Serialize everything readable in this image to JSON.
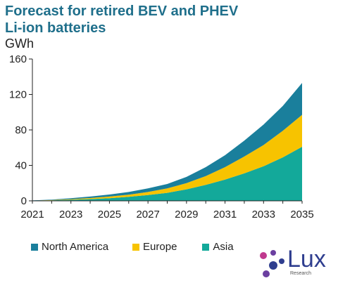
{
  "header": {
    "title_line1": "Forecast for retired BEV and PHEV",
    "title_line2": "Li-ion batteries",
    "unit": "GWh"
  },
  "logo": {
    "name": "Lux",
    "sub": "Research"
  },
  "colors": {
    "north_america": "#1a7f9c",
    "europe": "#f7c300",
    "asia": "#13a99a",
    "axis": "#222222",
    "title": "#1f6f8b",
    "logo": "#2f3e8f"
  },
  "chart_data": {
    "type": "area",
    "stacked": true,
    "title": "Forecast for retired BEV and PHEV Li-ion batteries",
    "ylabel": "GWh",
    "xlabel": "",
    "x": [
      2021,
      2022,
      2023,
      2024,
      2025,
      2026,
      2027,
      2028,
      2029,
      2030,
      2031,
      2032,
      2033,
      2034,
      2035
    ],
    "x_ticks": [
      2021,
      2023,
      2025,
      2027,
      2029,
      2031,
      2033,
      2035
    ],
    "y_ticks": [
      0,
      40,
      80,
      120,
      160
    ],
    "ylim": [
      0,
      160
    ],
    "xlim": [
      2021,
      2035
    ],
    "grid": false,
    "legend_position": "bottom",
    "series": [
      {
        "name": "Asia",
        "values": [
          0.2,
          0.6,
          1.2,
          2.0,
          3.0,
          4.5,
          6.5,
          9.0,
          13.0,
          18.0,
          24.0,
          31.0,
          39.0,
          49.0,
          61.0
        ]
      },
      {
        "name": "Europe",
        "values": [
          0.1,
          0.3,
          0.7,
          1.2,
          1.8,
          2.5,
          3.5,
          5.0,
          7.0,
          10.0,
          14.0,
          19.0,
          24.0,
          30.0,
          36.0
        ]
      },
      {
        "name": "North America",
        "values": [
          0.2,
          0.5,
          1.0,
          1.6,
          2.3,
          3.0,
          4.0,
          5.0,
          7.0,
          10.0,
          13.5,
          18.0,
          23.0,
          28.0,
          36.0
        ]
      }
    ]
  }
}
